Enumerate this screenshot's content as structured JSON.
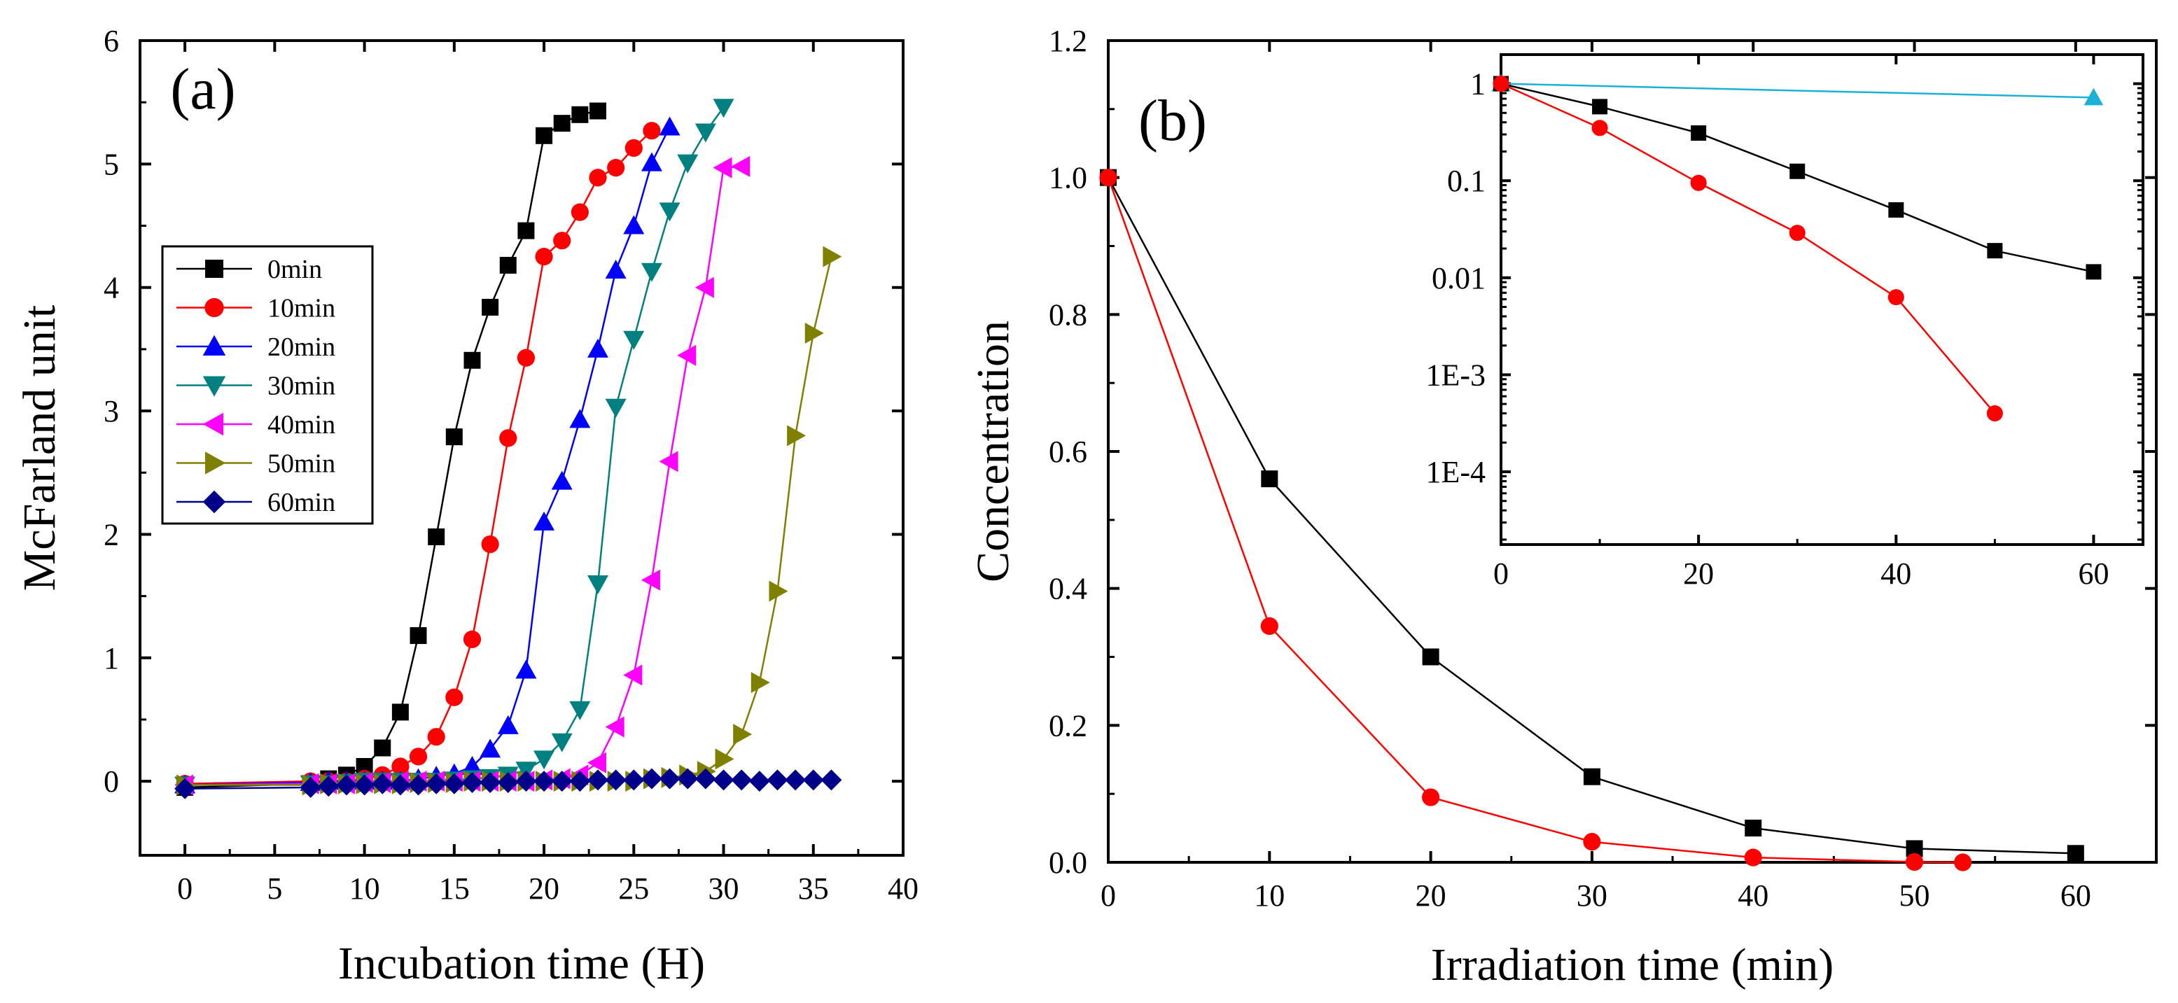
{
  "chart_data": [
    {
      "type": "line",
      "panel_label": "(a)",
      "xlabel": "Incubation time (H)",
      "ylabel": "McFarland unit",
      "xlim": [
        -2.5,
        40
      ],
      "ylim": [
        -0.6,
        6
      ],
      "xticks": [
        0,
        5,
        10,
        15,
        20,
        25,
        30,
        35,
        40
      ],
      "yticks": [
        0,
        1,
        2,
        3,
        4,
        5,
        6
      ],
      "legend_position": "middle-left",
      "series": [
        {
          "name": "0min",
          "color": "#000000",
          "marker": "square",
          "points": [
            [
              0,
              -0.05
            ],
            [
              7,
              -0.02
            ],
            [
              8,
              0.02
            ],
            [
              9,
              0.05
            ],
            [
              10,
              0.12
            ],
            [
              11,
              0.27
            ],
            [
              12,
              0.56
            ],
            [
              13,
              1.18
            ],
            [
              14,
              1.98
            ],
            [
              15,
              2.79
            ],
            [
              16,
              3.41
            ],
            [
              17,
              3.84
            ],
            [
              18,
              4.18
            ],
            [
              19,
              4.46
            ],
            [
              20,
              5.23
            ],
            [
              21,
              5.33
            ],
            [
              22,
              5.4
            ],
            [
              23,
              5.43
            ]
          ]
        },
        {
          "name": "10min",
          "color": "#ff0000",
          "marker": "circle",
          "points": [
            [
              0,
              -0.02
            ],
            [
              7,
              0.0
            ],
            [
              8,
              0.0
            ],
            [
              9,
              0.0
            ],
            [
              10,
              0.02
            ],
            [
              11,
              0.05
            ],
            [
              12,
              0.12
            ],
            [
              13,
              0.2
            ],
            [
              14,
              0.36
            ],
            [
              15,
              0.68
            ],
            [
              16,
              1.15
            ],
            [
              17,
              1.92
            ],
            [
              18,
              2.78
            ],
            [
              19,
              3.43
            ],
            [
              20,
              4.25
            ],
            [
              21,
              4.38
            ],
            [
              22,
              4.61
            ],
            [
              23,
              4.89
            ],
            [
              24,
              4.97
            ],
            [
              25,
              5.13
            ],
            [
              26,
              5.27
            ]
          ]
        },
        {
          "name": "20min",
          "color": "#0000ff",
          "marker": "triangle-up",
          "points": [
            [
              0,
              -0.03
            ],
            [
              7,
              -0.01
            ],
            [
              8,
              0.0
            ],
            [
              9,
              0.0
            ],
            [
              10,
              0.0
            ],
            [
              11,
              0.0
            ],
            [
              12,
              0.0
            ],
            [
              13,
              0.02
            ],
            [
              14,
              0.04
            ],
            [
              15,
              0.06
            ],
            [
              16,
              0.12
            ],
            [
              17,
              0.26
            ],
            [
              18,
              0.45
            ],
            [
              19,
              0.9
            ],
            [
              20,
              2.1
            ],
            [
              21,
              2.43
            ],
            [
              22,
              2.93
            ],
            [
              23,
              3.5
            ],
            [
              24,
              4.14
            ],
            [
              25,
              4.5
            ],
            [
              26,
              5.01
            ],
            [
              27,
              5.3
            ]
          ]
        },
        {
          "name": "30min",
          "color": "#008080",
          "marker": "triangle-down",
          "points": [
            [
              0,
              -0.03
            ],
            [
              7,
              -0.02
            ],
            [
              8,
              -0.02
            ],
            [
              9,
              -0.01
            ],
            [
              10,
              0.0
            ],
            [
              11,
              0.0
            ],
            [
              12,
              0.0
            ],
            [
              13,
              0.0
            ],
            [
              14,
              0.0
            ],
            [
              15,
              0.01
            ],
            [
              16,
              0.02
            ],
            [
              17,
              0.03
            ],
            [
              18,
              0.05
            ],
            [
              19,
              0.09
            ],
            [
              20,
              0.18
            ],
            [
              21,
              0.32
            ],
            [
              22,
              0.58
            ],
            [
              23,
              1.6
            ],
            [
              24,
              3.03
            ],
            [
              25,
              3.58
            ],
            [
              26,
              4.13
            ],
            [
              27,
              4.62
            ],
            [
              28,
              5.01
            ],
            [
              29,
              5.26
            ],
            [
              30,
              5.46
            ]
          ]
        },
        {
          "name": "40min",
          "color": "#ff00ff",
          "marker": "triangle-left",
          "points": [
            [
              0,
              -0.03
            ],
            [
              7,
              -0.02
            ],
            [
              8,
              -0.02
            ],
            [
              9,
              -0.02
            ],
            [
              10,
              -0.01
            ],
            [
              11,
              -0.01
            ],
            [
              12,
              0.0
            ],
            [
              13,
              0.0
            ],
            [
              14,
              0.0
            ],
            [
              15,
              0.0
            ],
            [
              16,
              0.0
            ],
            [
              17,
              0.0
            ],
            [
              18,
              0.0
            ],
            [
              19,
              0.0
            ],
            [
              20,
              0.01
            ],
            [
              21,
              0.02
            ],
            [
              22,
              0.05
            ],
            [
              23,
              0.15
            ],
            [
              24,
              0.44
            ],
            [
              25,
              0.86
            ],
            [
              26,
              1.63
            ],
            [
              27,
              2.59
            ],
            [
              28,
              3.45
            ],
            [
              29,
              4.0
            ],
            [
              30,
              4.97
            ],
            [
              31,
              4.98
            ]
          ]
        },
        {
          "name": "50min",
          "color": "#808000",
          "marker": "triangle-right",
          "points": [
            [
              0,
              -0.03
            ],
            [
              7,
              -0.03
            ],
            [
              8,
              -0.02
            ],
            [
              9,
              -0.02
            ],
            [
              10,
              -0.02
            ],
            [
              11,
              -0.02
            ],
            [
              12,
              -0.02
            ],
            [
              13,
              -0.01
            ],
            [
              14,
              -0.01
            ],
            [
              15,
              -0.01
            ],
            [
              16,
              0.0
            ],
            [
              17,
              0.0
            ],
            [
              18,
              0.0
            ],
            [
              19,
              0.0
            ],
            [
              20,
              0.0
            ],
            [
              21,
              0.0
            ],
            [
              22,
              0.0
            ],
            [
              23,
              0.0
            ],
            [
              24,
              0.0
            ],
            [
              25,
              0.0
            ],
            [
              26,
              0.02
            ],
            [
              27,
              0.03
            ],
            [
              28,
              0.05
            ],
            [
              29,
              0.08
            ],
            [
              30,
              0.18
            ],
            [
              31,
              0.38
            ],
            [
              32,
              0.8
            ],
            [
              33,
              1.54
            ],
            [
              34,
              2.8
            ],
            [
              35,
              3.63
            ],
            [
              36,
              4.25
            ]
          ]
        },
        {
          "name": "60min",
          "color": "#00008b",
          "marker": "diamond",
          "points": [
            [
              0,
              -0.06
            ],
            [
              7,
              -0.05
            ],
            [
              8,
              -0.04
            ],
            [
              9,
              -0.03
            ],
            [
              10,
              -0.03
            ],
            [
              11,
              -0.02
            ],
            [
              12,
              -0.03
            ],
            [
              13,
              -0.03
            ],
            [
              14,
              -0.02
            ],
            [
              15,
              -0.02
            ],
            [
              16,
              -0.01
            ],
            [
              17,
              -0.01
            ],
            [
              18,
              -0.01
            ],
            [
              19,
              0.0
            ],
            [
              20,
              0.0
            ],
            [
              21,
              0.0
            ],
            [
              22,
              0.0
            ],
            [
              23,
              0.01
            ],
            [
              24,
              0.01
            ],
            [
              25,
              0.01
            ],
            [
              26,
              0.02
            ],
            [
              27,
              0.02
            ],
            [
              28,
              0.02
            ],
            [
              29,
              0.02
            ],
            [
              30,
              0.01
            ],
            [
              31,
              0.01
            ],
            [
              32,
              0.0
            ],
            [
              33,
              0.01
            ],
            [
              34,
              0.01
            ],
            [
              35,
              0.01
            ],
            [
              36,
              0.01
            ]
          ]
        }
      ]
    },
    {
      "type": "line",
      "panel_label": "(b)",
      "xlabel": "Irradiation time (min)",
      "ylabel": "Concentration",
      "xlim": [
        0,
        65
      ],
      "ylim": [
        0,
        1.2
      ],
      "xticks": [
        0,
        10,
        20,
        30,
        40,
        50,
        60
      ],
      "yticks": [
        0.0,
        0.2,
        0.4,
        0.6,
        0.8,
        1.0,
        1.2
      ],
      "ytick_labels": [
        "0.0",
        "0.2",
        "0.4",
        "0.6",
        "0.8",
        "1.0",
        "1.2"
      ],
      "series": [
        {
          "name": "black",
          "color": "#000000",
          "marker": "square",
          "points": [
            [
              0,
              1.0
            ],
            [
              10,
              0.56
            ],
            [
              20,
              0.3
            ],
            [
              30,
              0.125
            ],
            [
              40,
              0.05
            ],
            [
              50,
              0.02
            ],
            [
              60,
              0.013
            ]
          ]
        },
        {
          "name": "red",
          "color": "#ff0000",
          "marker": "circle",
          "points": [
            [
              0,
              1.0
            ],
            [
              10,
              0.345
            ],
            [
              20,
              0.095
            ],
            [
              30,
              0.03
            ],
            [
              40,
              0.007
            ],
            [
              50,
              0.0005
            ],
            [
              53,
              0.0
            ]
          ]
        }
      ],
      "inset": {
        "type": "line",
        "yscale": "log",
        "xlim": [
          0,
          65
        ],
        "ylim_log10": [
          -4.75,
          0.3
        ],
        "xticks": [
          0,
          20,
          40,
          60
        ],
        "yticks": [
          1,
          0.1,
          0.01,
          0.001,
          0.0001
        ],
        "ytick_labels": [
          "1",
          "0.1",
          "0.01",
          "1E-3",
          "1E-4"
        ],
        "series": [
          {
            "name": "cyan",
            "color": "#1ab0d8",
            "marker": "triangle-up",
            "points": [
              [
                0,
                1.0
              ],
              [
                60,
                0.72
              ]
            ]
          },
          {
            "name": "black",
            "color": "#000000",
            "marker": "square",
            "points": [
              [
                0,
                1.0
              ],
              [
                10,
                0.58
              ],
              [
                20,
                0.31
              ],
              [
                30,
                0.125
              ],
              [
                40,
                0.05
              ],
              [
                50,
                0.019
              ],
              [
                60,
                0.0115
              ]
            ]
          },
          {
            "name": "red",
            "color": "#ff0000",
            "marker": "circle",
            "points": [
              [
                0,
                1.0
              ],
              [
                10,
                0.35
              ],
              [
                20,
                0.095
              ],
              [
                30,
                0.029
              ],
              [
                40,
                0.0063
              ],
              [
                50,
                0.0004
              ]
            ]
          }
        ]
      }
    }
  ]
}
